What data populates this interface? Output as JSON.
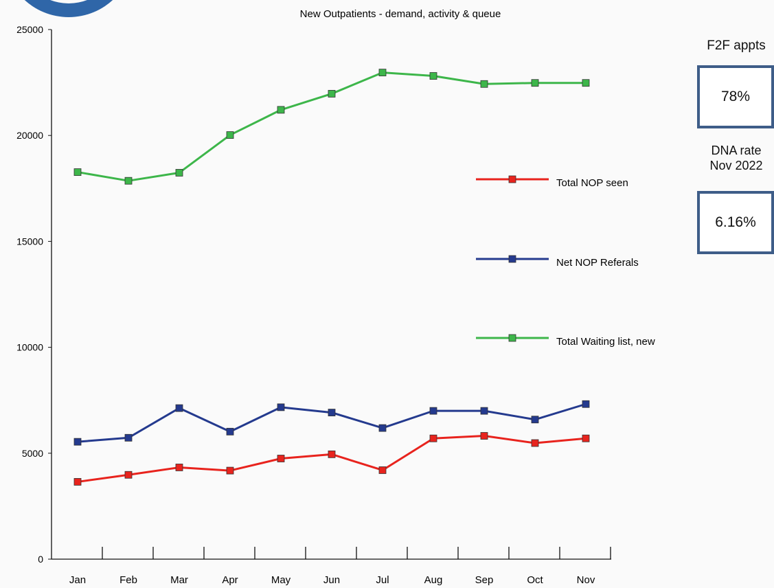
{
  "chart_data": {
    "type": "line",
    "title": "New Outpatients - demand, activity & queue",
    "xlabel": "",
    "ylabel": "",
    "categories": [
      "Jan",
      "Feb",
      "Mar",
      "Apr",
      "May",
      "Jun",
      "Jul",
      "Aug",
      "Sep",
      "Oct",
      "Nov"
    ],
    "yticks": [
      "0",
      "5000",
      "10000",
      "15000",
      "20000",
      "25000"
    ],
    "ylim": [
      0,
      25000
    ],
    "grid": false,
    "legend_position": "right",
    "series": [
      {
        "name": "Total NOP seen",
        "color": "#e8231d",
        "values": [
          3650,
          3980,
          4330,
          4180,
          4750,
          4950,
          4200,
          5700,
          5820,
          5480,
          5700
        ]
      },
      {
        "name": "Net NOP Referals",
        "color": "#243a8e",
        "values": [
          5540,
          5730,
          7130,
          6020,
          7170,
          6920,
          6190,
          7000,
          7000,
          6590,
          7320
        ]
      },
      {
        "name": "Total Waiting list, new",
        "color": "#3db64a",
        "values": [
          18270,
          17860,
          18240,
          20020,
          21210,
          21970,
          22970,
          22810,
          22430,
          22480,
          22480
        ]
      }
    ]
  },
  "side_panel": {
    "f2f_label": "F2F appts",
    "f2f_value": "78%",
    "dna_label_line1": "DNA rate",
    "dna_label_line2": "Nov 2022",
    "dna_value": "6.16%"
  },
  "decoration": {
    "ring_color": "#3e76b3"
  }
}
